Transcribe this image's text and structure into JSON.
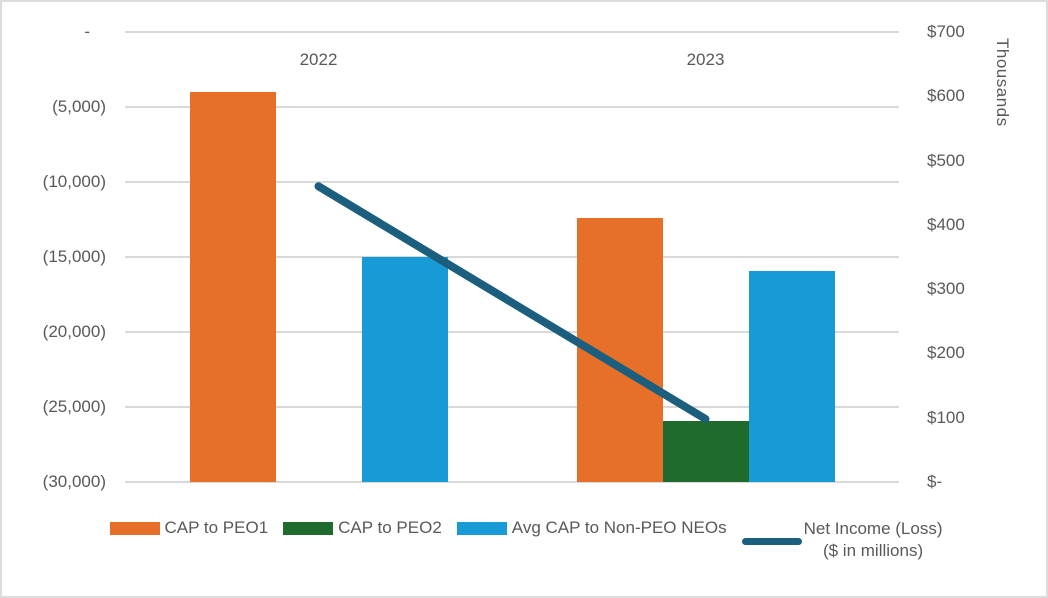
{
  "chart_data": {
    "type": "bar",
    "subtype": "combo-bar-line",
    "title": "",
    "categories": [
      "2022",
      "2023"
    ],
    "bar_series": [
      {
        "name": "CAP to PEO1",
        "color": "#E6702A",
        "values": [
          -4000,
          -12400
        ]
      },
      {
        "name": "CAP to PEO2",
        "color": "#1E6B2D",
        "values": [
          null,
          -25900
        ]
      },
      {
        "name": "Avg CAP to Non-PEO NEOs",
        "color": "#189AD6",
        "values": [
          -15000,
          -15900
        ]
      }
    ],
    "line_series": {
      "name": "Net Income (Loss)",
      "name_line2": "($ in millions)",
      "color": "#1B5E7D",
      "axis": "secondary",
      "values": [
        460,
        98
      ]
    },
    "left_axis": {
      "min": -30000,
      "max": 0,
      "step": 5000,
      "ticks": [
        "-",
        "(5,000)",
        "(10,000)",
        "(15,000)",
        "(20,000)",
        "(25,000)",
        "(30,000)"
      ]
    },
    "right_axis": {
      "min": 0,
      "max": 700,
      "step": 100,
      "title": "Thousands",
      "ticks": [
        "$700",
        "$600",
        "$500",
        "$400",
        "$300",
        "$200",
        "$100",
        "$-"
      ]
    },
    "grid": true,
    "legend_position": "bottom"
  },
  "colors": {
    "text": "#595959",
    "gridline": "#D9D9D9",
    "frame_border": "#DCDCDC",
    "background": "#FFFFFF"
  }
}
